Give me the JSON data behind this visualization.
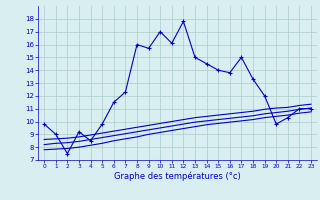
{
  "xlabel": "Graphe des températures (°c)",
  "x": [
    0,
    1,
    2,
    3,
    4,
    5,
    6,
    7,
    8,
    9,
    10,
    11,
    12,
    13,
    14,
    15,
    16,
    17,
    18,
    19,
    20,
    21,
    22,
    23
  ],
  "line1": [
    9.8,
    9.0,
    7.5,
    9.2,
    8.5,
    9.8,
    11.5,
    12.3,
    16.0,
    15.7,
    17.0,
    16.1,
    17.8,
    15.0,
    14.5,
    14.0,
    13.8,
    15.0,
    13.3,
    12.0,
    9.8,
    10.3,
    11.0,
    11.0
  ],
  "line2": [
    7.8,
    7.85,
    7.9,
    8.0,
    8.15,
    8.3,
    8.5,
    8.65,
    8.8,
    9.0,
    9.15,
    9.3,
    9.45,
    9.6,
    9.75,
    9.85,
    9.95,
    10.05,
    10.15,
    10.3,
    10.4,
    10.5,
    10.65,
    10.75
  ],
  "line3": [
    8.2,
    8.3,
    8.35,
    8.45,
    8.6,
    8.75,
    8.9,
    9.05,
    9.2,
    9.35,
    9.5,
    9.65,
    9.8,
    9.95,
    10.05,
    10.15,
    10.25,
    10.35,
    10.45,
    10.6,
    10.7,
    10.8,
    10.95,
    11.05
  ],
  "line4": [
    8.6,
    8.65,
    8.7,
    8.8,
    8.95,
    9.1,
    9.25,
    9.4,
    9.55,
    9.7,
    9.85,
    10.0,
    10.15,
    10.3,
    10.4,
    10.5,
    10.6,
    10.7,
    10.8,
    10.95,
    11.05,
    11.1,
    11.25,
    11.35
  ],
  "line_color": "#0000cc",
  "bg_color": "#d8eef0",
  "grid_color": "#aacccc",
  "ylim": [
    7,
    19
  ],
  "xlim": [
    -0.5,
    23.5
  ],
  "yticks": [
    7,
    8,
    9,
    10,
    11,
    12,
    13,
    14,
    15,
    16,
    17,
    18
  ],
  "xticks": [
    0,
    1,
    2,
    3,
    4,
    5,
    6,
    7,
    8,
    9,
    10,
    11,
    12,
    13,
    14,
    15,
    16,
    17,
    18,
    19,
    20,
    21,
    22,
    23
  ]
}
